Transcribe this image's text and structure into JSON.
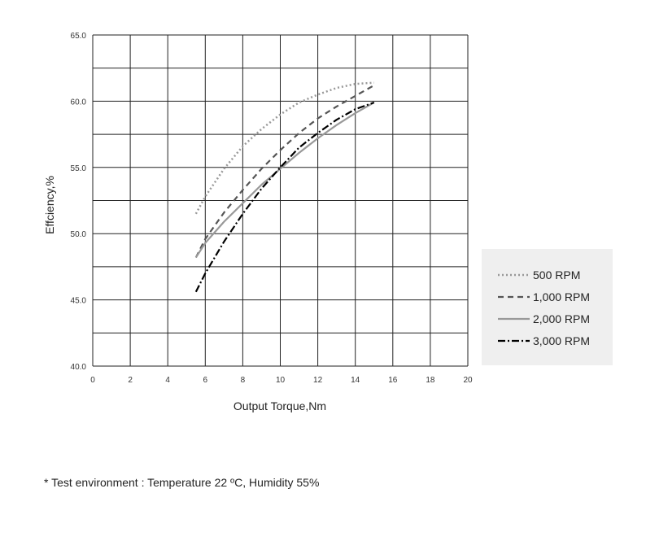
{
  "chart_data": {
    "type": "line",
    "xlabel": "Output Torque,Nm",
    "ylabel": "Effciency,%",
    "xlim": [
      0,
      20
    ],
    "ylim": [
      40,
      65
    ],
    "x_ticks": [
      0,
      2,
      4,
      6,
      8,
      10,
      12,
      14,
      16,
      18,
      20
    ],
    "y_ticks": [
      "40.0",
      "45.0",
      "50.0",
      "55.0",
      "60.0",
      "65.0"
    ],
    "grid": true,
    "legend_position": "right",
    "series": [
      {
        "name": "500 RPM",
        "style": "dotted",
        "color": "#999999",
        "x": [
          5.5,
          6,
          7,
          8,
          9,
          10,
          11,
          12,
          13,
          14,
          15
        ],
        "y": [
          51.5,
          52.8,
          54.9,
          56.6,
          57.9,
          59.0,
          59.9,
          60.5,
          61.0,
          61.3,
          61.4
        ]
      },
      {
        "name": "1,000 RPM",
        "style": "dashed",
        "color": "#555555",
        "x": [
          5.5,
          6,
          7,
          8,
          9,
          10,
          11,
          12,
          13,
          14,
          15
        ],
        "y": [
          48.2,
          49.6,
          51.6,
          53.3,
          54.9,
          56.3,
          57.6,
          58.7,
          59.6,
          60.4,
          61.2
        ]
      },
      {
        "name": "2,000 RPM",
        "style": "solid",
        "color": "#999999",
        "x": [
          5.5,
          6,
          7,
          8,
          9,
          10,
          11,
          12,
          13,
          14,
          15
        ],
        "y": [
          48.2,
          49.3,
          50.9,
          52.3,
          53.7,
          54.9,
          56.1,
          57.2,
          58.2,
          59.1,
          59.9
        ]
      },
      {
        "name": "3,000 RPM",
        "style": "dash-dot",
        "color": "#000000",
        "x": [
          5.5,
          6,
          7,
          8,
          9,
          10,
          11,
          12,
          13,
          14,
          15
        ],
        "y": [
          45.6,
          47.0,
          49.4,
          51.5,
          53.4,
          55.0,
          56.5,
          57.6,
          58.6,
          59.4,
          59.9
        ]
      }
    ]
  },
  "note": "* Test environment : Temperature 22 ºC, Humidity 55%"
}
